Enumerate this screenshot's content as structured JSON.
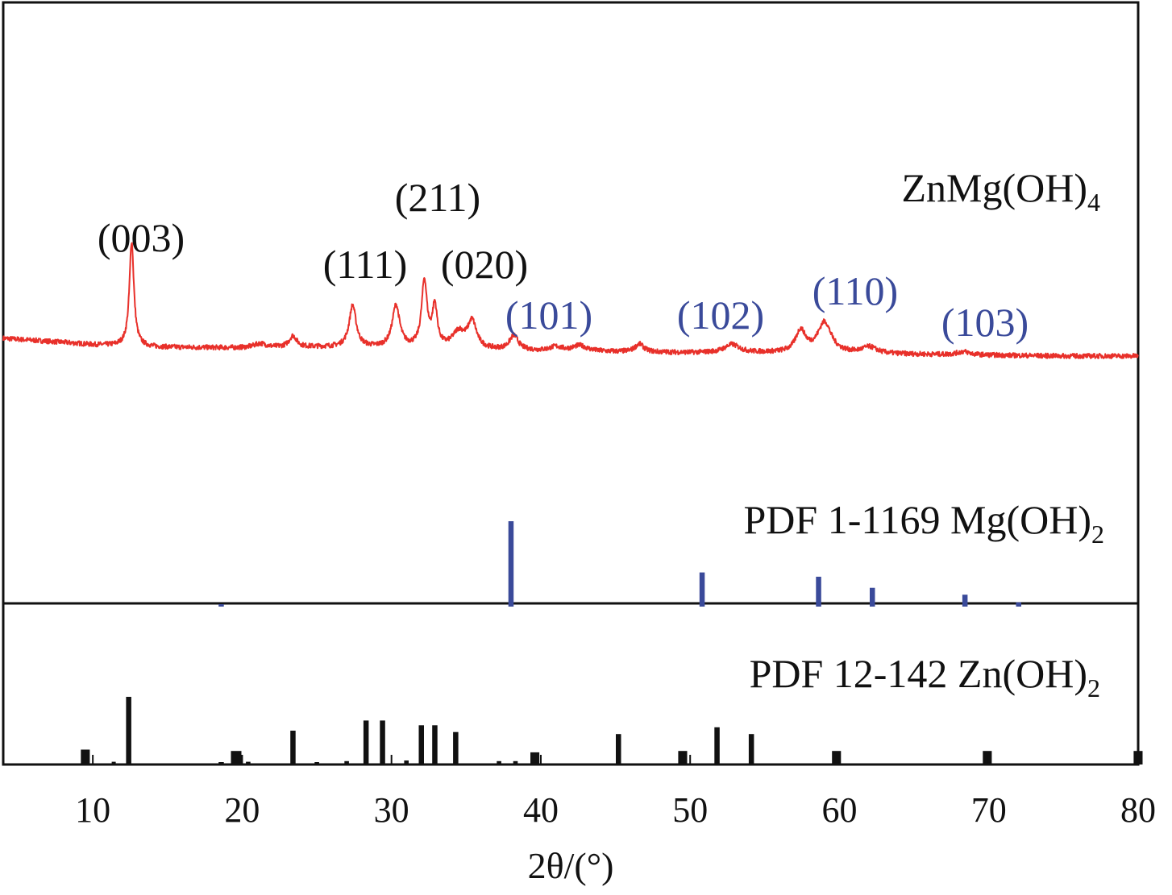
{
  "chart_data": {
    "type": "line",
    "title": "",
    "xlabel": "2θ/(°)",
    "ylabel": "",
    "xlim": [
      4,
      80
    ],
    "xticks": [
      10,
      20,
      30,
      40,
      50,
      60,
      70,
      80
    ],
    "colors": {
      "pattern": "#e8302a",
      "mg_ref": "#3a4a9a",
      "zn_ref": "#111111",
      "frame": "#111111"
    },
    "series": [
      {
        "name": "ZnMg(OH)4",
        "label_main": "ZnMg(OH)",
        "label_sub": "4",
        "color": "#e8302a",
        "baseline": [
          [
            4,
            60
          ],
          [
            8,
            55
          ],
          [
            10,
            52
          ],
          [
            14,
            49
          ],
          [
            20,
            48
          ],
          [
            25,
            49
          ],
          [
            30,
            48
          ],
          [
            35,
            46
          ],
          [
            40,
            44
          ],
          [
            45,
            43
          ],
          [
            50,
            42
          ],
          [
            55,
            42
          ],
          [
            60,
            41
          ],
          [
            65,
            40
          ],
          [
            70,
            39
          ],
          [
            75,
            38
          ],
          [
            80,
            38
          ]
        ],
        "peaks": [
          {
            "x": 12.6,
            "h": 130,
            "w": 0.18
          },
          {
            "x": 21.2,
            "h": 5,
            "w": 0.5
          },
          {
            "x": 23.4,
            "h": 14,
            "w": 0.3
          },
          {
            "x": 27.4,
            "h": 52,
            "w": 0.28
          },
          {
            "x": 30.3,
            "h": 52,
            "w": 0.3
          },
          {
            "x": 32.2,
            "h": 82,
            "w": 0.22
          },
          {
            "x": 32.9,
            "h": 50,
            "w": 0.2
          },
          {
            "x": 34.5,
            "h": 20,
            "w": 0.5
          },
          {
            "x": 35.4,
            "h": 33,
            "w": 0.35
          },
          {
            "x": 38.2,
            "h": 18,
            "w": 0.35
          },
          {
            "x": 41.0,
            "h": 5,
            "w": 0.5
          },
          {
            "x": 42.6,
            "h": 7,
            "w": 0.6
          },
          {
            "x": 46.6,
            "h": 10,
            "w": 0.35
          },
          {
            "x": 52.8,
            "h": 10,
            "w": 0.6
          },
          {
            "x": 57.4,
            "h": 27,
            "w": 0.4
          },
          {
            "x": 59.0,
            "h": 38,
            "w": 0.55
          },
          {
            "x": 62.0,
            "h": 8,
            "w": 0.6
          },
          {
            "x": 68.3,
            "h": 4,
            "w": 0.5
          }
        ],
        "noise_amplitude": 3
      },
      {
        "name": "PDF 1-1169 Mg(OH)2",
        "label_main": "PDF 1-1169 Mg(OH)",
        "label_sub": "2",
        "type": "stick",
        "color": "#3a4a9a",
        "positions": [
          18.6,
          38.0,
          50.8,
          58.6,
          62.2,
          68.4,
          72.0
        ],
        "intensities": [
          2,
          100,
          40,
          35,
          22,
          14,
          5
        ]
      },
      {
        "name": "PDF 12-142 Zn(OH)2",
        "label_main": "PDF 12-142 Zn(OH)",
        "label_sub": "2",
        "type": "stick",
        "color": "#111111",
        "positions": [
          9.5,
          11.4,
          12.4,
          18.6,
          19.6,
          20.4,
          23.4,
          25.0,
          27.0,
          28.3,
          29.4,
          31.0,
          32.0,
          32.9,
          34.3,
          37.2,
          38.3,
          39.6,
          45.2,
          49.5,
          51.8,
          54.1,
          59.8,
          69.9,
          80.0
        ],
        "intensities": [
          22,
          4,
          100,
          3,
          20,
          4,
          50,
          3,
          5,
          65,
          65,
          6,
          58,
          58,
          48,
          5,
          5,
          18,
          45,
          20,
          55,
          45,
          20,
          20,
          20
        ],
        "widths": [
          0.6,
          0.25,
          0.35,
          0.35,
          0.7,
          0.3,
          0.35,
          0.3,
          0.3,
          0.35,
          0.35,
          0.3,
          0.35,
          0.35,
          0.35,
          0.3,
          0.3,
          0.6,
          0.35,
          0.6,
          0.35,
          0.35,
          0.6,
          0.6,
          0.6
        ]
      }
    ],
    "annotations": [
      {
        "text": "(003)",
        "x": 12.6,
        "color": "black"
      },
      {
        "text": "(211)",
        "x": 32.2,
        "color": "black"
      },
      {
        "text": "(111)",
        "x": 29.5,
        "color": "black"
      },
      {
        "text": "(020)",
        "x": 35.5,
        "color": "black"
      },
      {
        "text": "(101)",
        "x": 38.2,
        "color": "blue"
      },
      {
        "text": "(102)",
        "x": 52.2,
        "color": "blue"
      },
      {
        "text": "(110)",
        "x": 59.0,
        "color": "blue"
      },
      {
        "text": "(103)",
        "x": 68.4,
        "color": "blue"
      }
    ]
  }
}
